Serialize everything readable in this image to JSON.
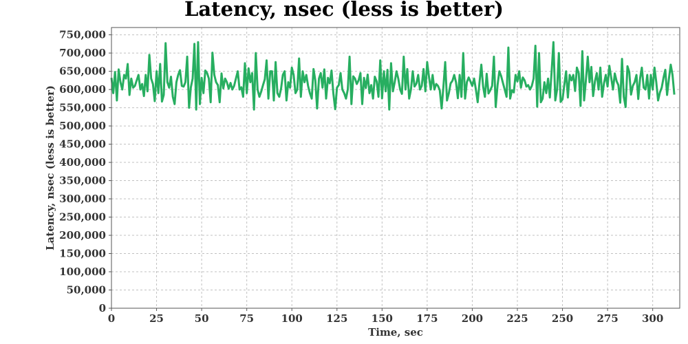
{
  "chart_data": {
    "type": "line",
    "title": "Latency, nsec (less is better)",
    "xlabel": "Time, sec",
    "ylabel": "Latency, nsec (less is better)",
    "xlim": [
      0,
      315
    ],
    "ylim": [
      0,
      770000
    ],
    "x_ticks": [
      0,
      25,
      50,
      75,
      100,
      125,
      150,
      175,
      200,
      225,
      250,
      275,
      300
    ],
    "y_ticks": [
      0,
      50000,
      100000,
      150000,
      200000,
      250000,
      300000,
      350000,
      400000,
      450000,
      500000,
      550000,
      600000,
      650000,
      700000,
      750000
    ],
    "grid": true,
    "legend": "none",
    "series_color": "#27ae60",
    "series": [
      {
        "x_start": 0,
        "x_step": 1,
        "values": [
          632000,
          590000,
          648000,
          570000,
          655000,
          620000,
          600000,
          640000,
          630000,
          670000,
          585000,
          630000,
          605000,
          610000,
          625000,
          640000,
          600000,
          615000,
          582000,
          640000,
          595000,
          695000,
          630000,
          615000,
          568000,
          650000,
          590000,
          670000,
          567000,
          585000,
          727000,
          620000,
          605000,
          635000,
          580000,
          560000,
          620000,
          640000,
          653000,
          610000,
          608000,
          620000,
          690000,
          550000,
          606000,
          630000,
          725000,
          545000,
          730000,
          560000,
          632000,
          590000,
          652000,
          645000,
          630000,
          565000,
          701000,
          640000,
          620000,
          612000,
          565000,
          644000,
          603000,
          630000,
          620000,
          602000,
          618000,
          600000,
          610000,
          630000,
          650000,
          600000,
          606000,
          580000,
          672000,
          590000,
          658000,
          620000,
          645000,
          545000,
          700000,
          600000,
          580000,
          594000,
          612000,
          628000,
          680000,
          575000,
          650000,
          650000,
          570000,
          675000,
          590000,
          580000,
          602000,
          640000,
          650000,
          570000,
          620000,
          605000,
          660000,
          640000,
          590000,
          600000,
          685000,
          580000,
          650000,
          620000,
          640000,
          610000,
          590000,
          575000,
          656000,
          625000,
          548000,
          630000,
          645000,
          605000,
          655000,
          575000,
          632000,
          617000,
          652000,
          590000,
          546000,
          605000,
          612000,
          645000,
          600000,
          590000,
          575000,
          600000,
          690000,
          560000,
          636000,
          630000,
          615000,
          625000,
          645000,
          560000,
          632000,
          604000,
          641000,
          590000,
          612000,
          575000,
          635000,
          622000,
          580000,
          680000,
          576000,
          650000,
          595000,
          654000,
          545000,
          672000,
          595000,
          620000,
          650000,
          630000,
          600000,
          588000,
          690000,
          600000,
          656000,
          575000,
          600000,
          650000,
          608000,
          616000,
          640000,
          600000,
          610000,
          656000,
          595000,
          675000,
          635000,
          600000,
          640000,
          600000,
          615000,
          610000,
          598000,
          548000,
          608000,
          675000,
          570000,
          590000,
          617000,
          624000,
          640000,
          620000,
          576000,
          640000,
          580000,
          700000,
          575000,
          620000,
          633000,
          622000,
          610000,
          630000,
          600000,
          565000,
          618000,
          668000,
          608000,
          580000,
          643000,
          589000,
          598000,
          610000,
          690000,
          552000,
          612000,
          650000,
          637000,
          618000,
          600000,
          580000,
          715000,
          575000,
          598000,
          592000,
          640000,
          622000,
          650000,
          605000,
          633000,
          625000,
          608000,
          612000,
          600000,
          610000,
          630000,
          720000,
          553000,
          700000,
          565000,
          575000,
          620000,
          590000,
          630000,
          578000,
          650000,
          730000,
          570000,
          600000,
          700000,
          566000,
          573000,
          612000,
          650000,
          578000,
          640000,
          625000,
          640000,
          596000,
          660000,
          645000,
          555000,
          705000,
          570000,
          625000,
          690000,
          620000,
          662000,
          582000,
          623000,
          645000,
          600000,
          660000,
          580000,
          617000,
          640000,
          608000,
          665000,
          632000,
          600000,
          644000,
          623000,
          612000,
          564000,
          684000,
          580000,
          552000,
          664000,
          648000,
          586000,
          610000,
          620000,
          640000,
          574000,
          630000,
          660000,
          605000,
          600000,
          640000,
          575000,
          640000,
          600000,
          660000,
          620000,
          570000,
          592000,
          605000,
          632000,
          654000,
          585000,
          630000,
          668000,
          640000,
          586000
        ]
      }
    ]
  }
}
